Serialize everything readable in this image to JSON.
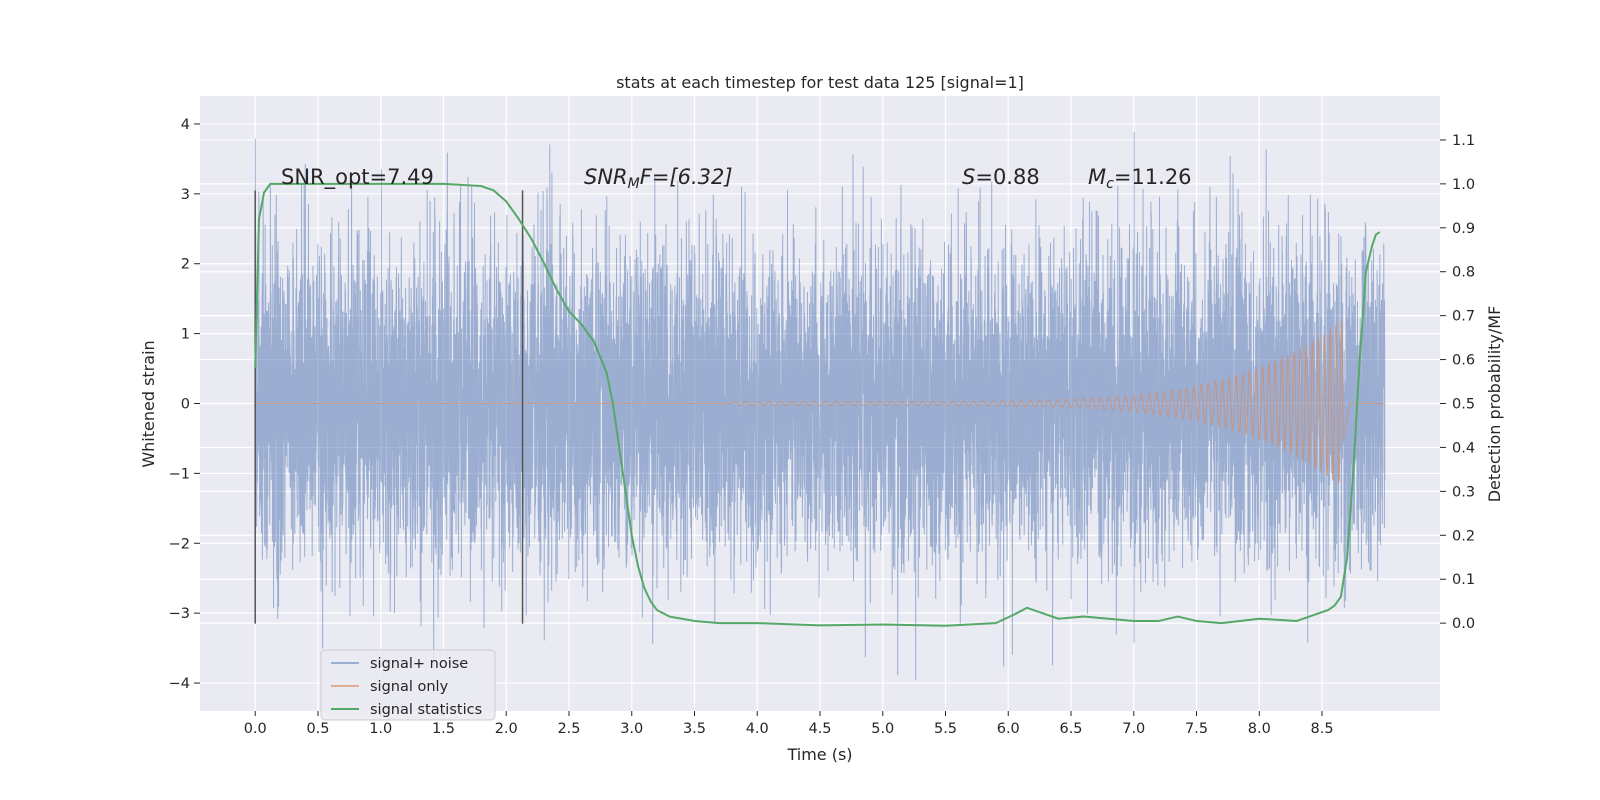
{
  "chart_data": {
    "type": "line",
    "title": "stats at each timestep for test data 125 [signal=1]",
    "xlabel": "Time (s)",
    "ylabel": "Whitened strain",
    "ylabel_right": "Detection probability/MF",
    "xlim": [
      -0.44,
      9.44
    ],
    "ylim": [
      -4.4,
      4.4
    ],
    "ylim_right": [
      -0.2,
      1.2
    ],
    "x_ticks": [
      "0.0",
      "0.5",
      "1.0",
      "1.5",
      "2.0",
      "2.5",
      "3.0",
      "3.5",
      "4.0",
      "4.5",
      "5.0",
      "5.5",
      "6.0",
      "6.5",
      "7.0",
      "7.5",
      "8.0",
      "8.5"
    ],
    "y_ticks": [
      "4",
      "3",
      "2",
      "1",
      "0",
      "−1",
      "−2",
      "−3",
      "−4"
    ],
    "y_ticks_right": [
      "1.1",
      "1.0",
      "0.9",
      "0.8",
      "0.7",
      "0.6",
      "0.5",
      "0.4",
      "0.3",
      "0.2",
      "0.1",
      "0.0"
    ],
    "grid": true,
    "legend_position": "bottom-left",
    "annotations": {
      "snr_opt": "SNR_opt=7.49",
      "snr_mf_main": "SNR",
      "snr_mf_sub": "M",
      "snr_mf_rest": "F=[6.32]",
      "s_main": "S",
      "s_rest": "=0.88",
      "mc_main": "M",
      "mc_sub": "c",
      "mc_rest": "=11.26"
    },
    "vlines": [
      {
        "x": 0.0,
        "y": [
          -3.15,
          3.05
        ]
      },
      {
        "x": 2.13,
        "y": [
          -3.15,
          3.05
        ]
      }
    ],
    "series": [
      {
        "name": "signal+ noise",
        "color": "#4c72b0",
        "x_range": [
          0.0,
          9.0
        ],
        "envelope": {
          "typical": 1.2,
          "peak_max": 3.95,
          "peak_min": -4.0
        }
      },
      {
        "name": "signal only",
        "color": "#dd8452",
        "chirp": {
          "start": 3.8,
          "end": 8.67,
          "amp_start": 0.03,
          "amp_end": 1.2
        }
      },
      {
        "name": "signal statistics",
        "color": "#55a868",
        "axis": "right",
        "x": [
          0.0,
          0.03,
          0.07,
          0.12,
          0.2,
          0.35,
          0.6,
          1.0,
          1.5,
          1.8,
          1.9,
          2.0,
          2.1,
          2.2,
          2.3,
          2.4,
          2.5,
          2.6,
          2.7,
          2.8,
          2.85,
          2.9,
          2.95,
          3.0,
          3.05,
          3.1,
          3.15,
          3.2,
          3.3,
          3.4,
          3.5,
          3.7,
          4.0,
          4.5,
          5.0,
          5.5,
          5.9,
          6.05,
          6.15,
          6.25,
          6.4,
          6.6,
          7.0,
          7.2,
          7.35,
          7.5,
          7.7,
          8.0,
          8.3,
          8.45,
          8.55,
          8.6,
          8.65,
          8.7,
          8.75,
          8.8,
          8.85,
          8.9,
          8.93,
          8.96
        ],
        "y": [
          0.58,
          0.92,
          0.98,
          1.0,
          1.0,
          1.0,
          1.0,
          1.0,
          1.0,
          0.995,
          0.985,
          0.96,
          0.92,
          0.875,
          0.82,
          0.76,
          0.71,
          0.68,
          0.64,
          0.57,
          0.5,
          0.4,
          0.3,
          0.2,
          0.13,
          0.08,
          0.05,
          0.03,
          0.015,
          0.01,
          0.005,
          0.0,
          0.0,
          -0.005,
          -0.003,
          -0.006,
          0.0,
          0.02,
          0.035,
          0.025,
          0.01,
          0.015,
          0.005,
          0.005,
          0.015,
          0.005,
          0.0,
          0.01,
          0.005,
          0.02,
          0.03,
          0.04,
          0.06,
          0.15,
          0.35,
          0.6,
          0.8,
          0.86,
          0.885,
          0.89
        ]
      }
    ]
  }
}
